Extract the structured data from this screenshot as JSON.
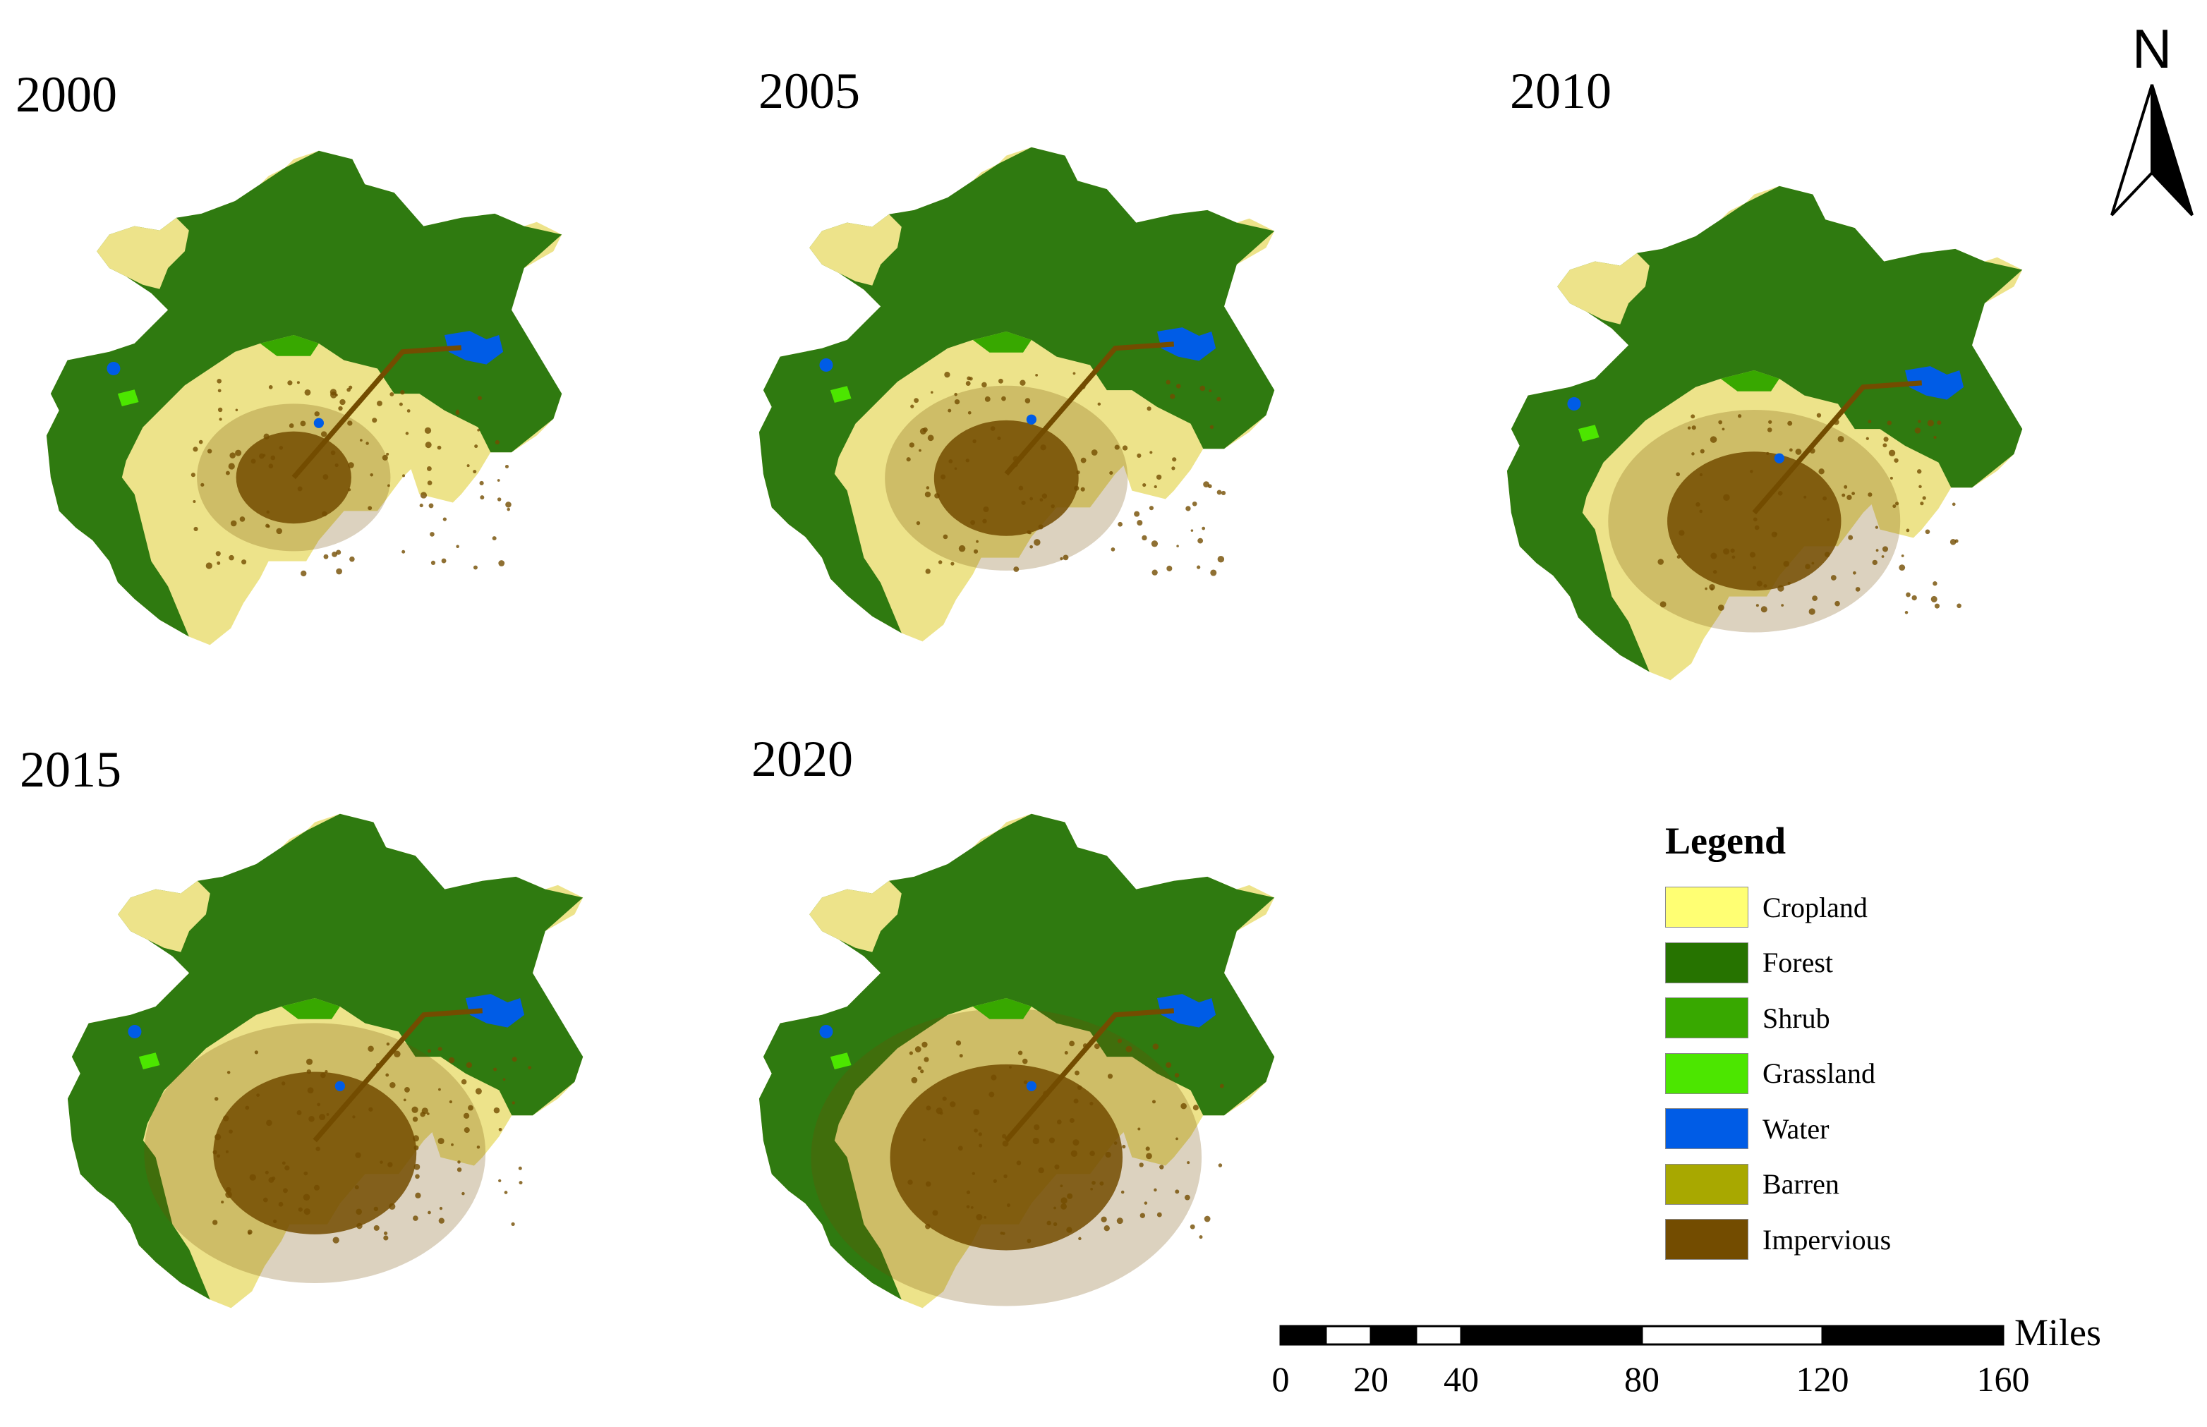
{
  "maps": [
    {
      "year": "2000"
    },
    {
      "year": "2005"
    },
    {
      "year": "2010"
    },
    {
      "year": "2015"
    },
    {
      "year": "2020"
    }
  ],
  "north_arrow": {
    "label": "N"
  },
  "legend": {
    "title": "Legend",
    "items": [
      {
        "label": "Cropland",
        "color": "#FFFF73"
      },
      {
        "label": "Forest",
        "color": "#267300"
      },
      {
        "label": "Shrub",
        "color": "#38A800"
      },
      {
        "label": "Grassland",
        "color": "#4CE600"
      },
      {
        "label": "Water",
        "color": "#005CE6"
      },
      {
        "label": "Barren",
        "color": "#A8A800"
      },
      {
        "label": "Impervious",
        "color": "#734C00"
      }
    ]
  },
  "scale_bar": {
    "unit": "Miles",
    "ticks": [
      "0",
      "20",
      "40",
      "80",
      "120",
      "160"
    ]
  },
  "colors": {
    "cropland_map": "#EDE38A",
    "forest_map": "#2F7A10"
  }
}
